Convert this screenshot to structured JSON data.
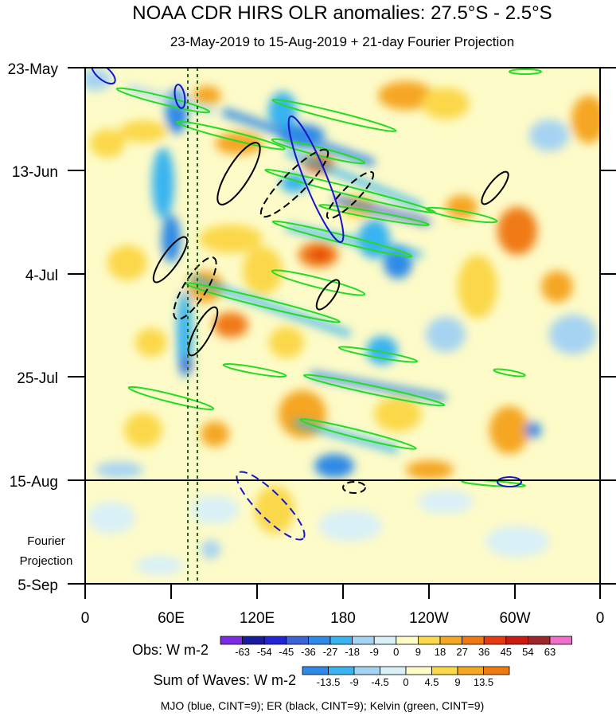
{
  "title": "NOAA CDR HIRS OLR anomalies: 27.5°S - 2.5°S",
  "subtitle": "23-May-2019 to 15-Aug-2019 + 21-day Fourier Projection",
  "projection_label": [
    "Fourier",
    "Projection"
  ],
  "chart_data": {
    "type": "heatmap",
    "x_ticks": [
      "0",
      "60E",
      "120E",
      "180",
      "120W",
      "60W",
      "0"
    ],
    "y_ticks": [
      "23-May",
      "13-Jun",
      "4-Jul",
      "25-Jul",
      "15-Aug",
      "5-Sep"
    ],
    "obs_date_range": [
      "23-May-2019",
      "15-Aug-2019"
    ],
    "projection_days": 21,
    "reference_longitudes_dotted": [
      72.5,
      77.5
    ],
    "obs_colorbar": {
      "label": "Obs: W m-2",
      "levels": [
        "-63",
        "-54",
        "-45",
        "-36",
        "-27",
        "-18",
        "-9",
        "0",
        "9",
        "18",
        "27",
        "36",
        "45",
        "54",
        "63"
      ],
      "colors": [
        "#7b2be2",
        "#1a1a9e",
        "#2323d8",
        "#3d64d6",
        "#2e8ae6",
        "#39b4f0",
        "#a6d3f2",
        "#d9f0f7",
        "#fdfbc8",
        "#fbd84a",
        "#f5a623",
        "#f07a12",
        "#e83a10",
        "#cc1a10",
        "#a0262a",
        "#ee6ec8"
      ]
    },
    "waves_colorbar": {
      "label": "Sum of Waves: W m-2",
      "levels": [
        "-13.5",
        "-9",
        "-4.5",
        "0",
        "4.5",
        "9",
        "13.5"
      ],
      "colors": [
        "#2e8ae6",
        "#39b4f0",
        "#a6d3f2",
        "#d9f0f7",
        "#fdfbc8",
        "#fbd84a",
        "#f5a623",
        "#f07a12"
      ]
    },
    "legend_text": "MJO (blue, CINT=9); ER (black, CINT=9); Kelvin (green, CINT=9)",
    "contour_colors": {
      "mjo": "#1515c8",
      "er": "#000000",
      "kelvin": "#22dd22"
    }
  }
}
